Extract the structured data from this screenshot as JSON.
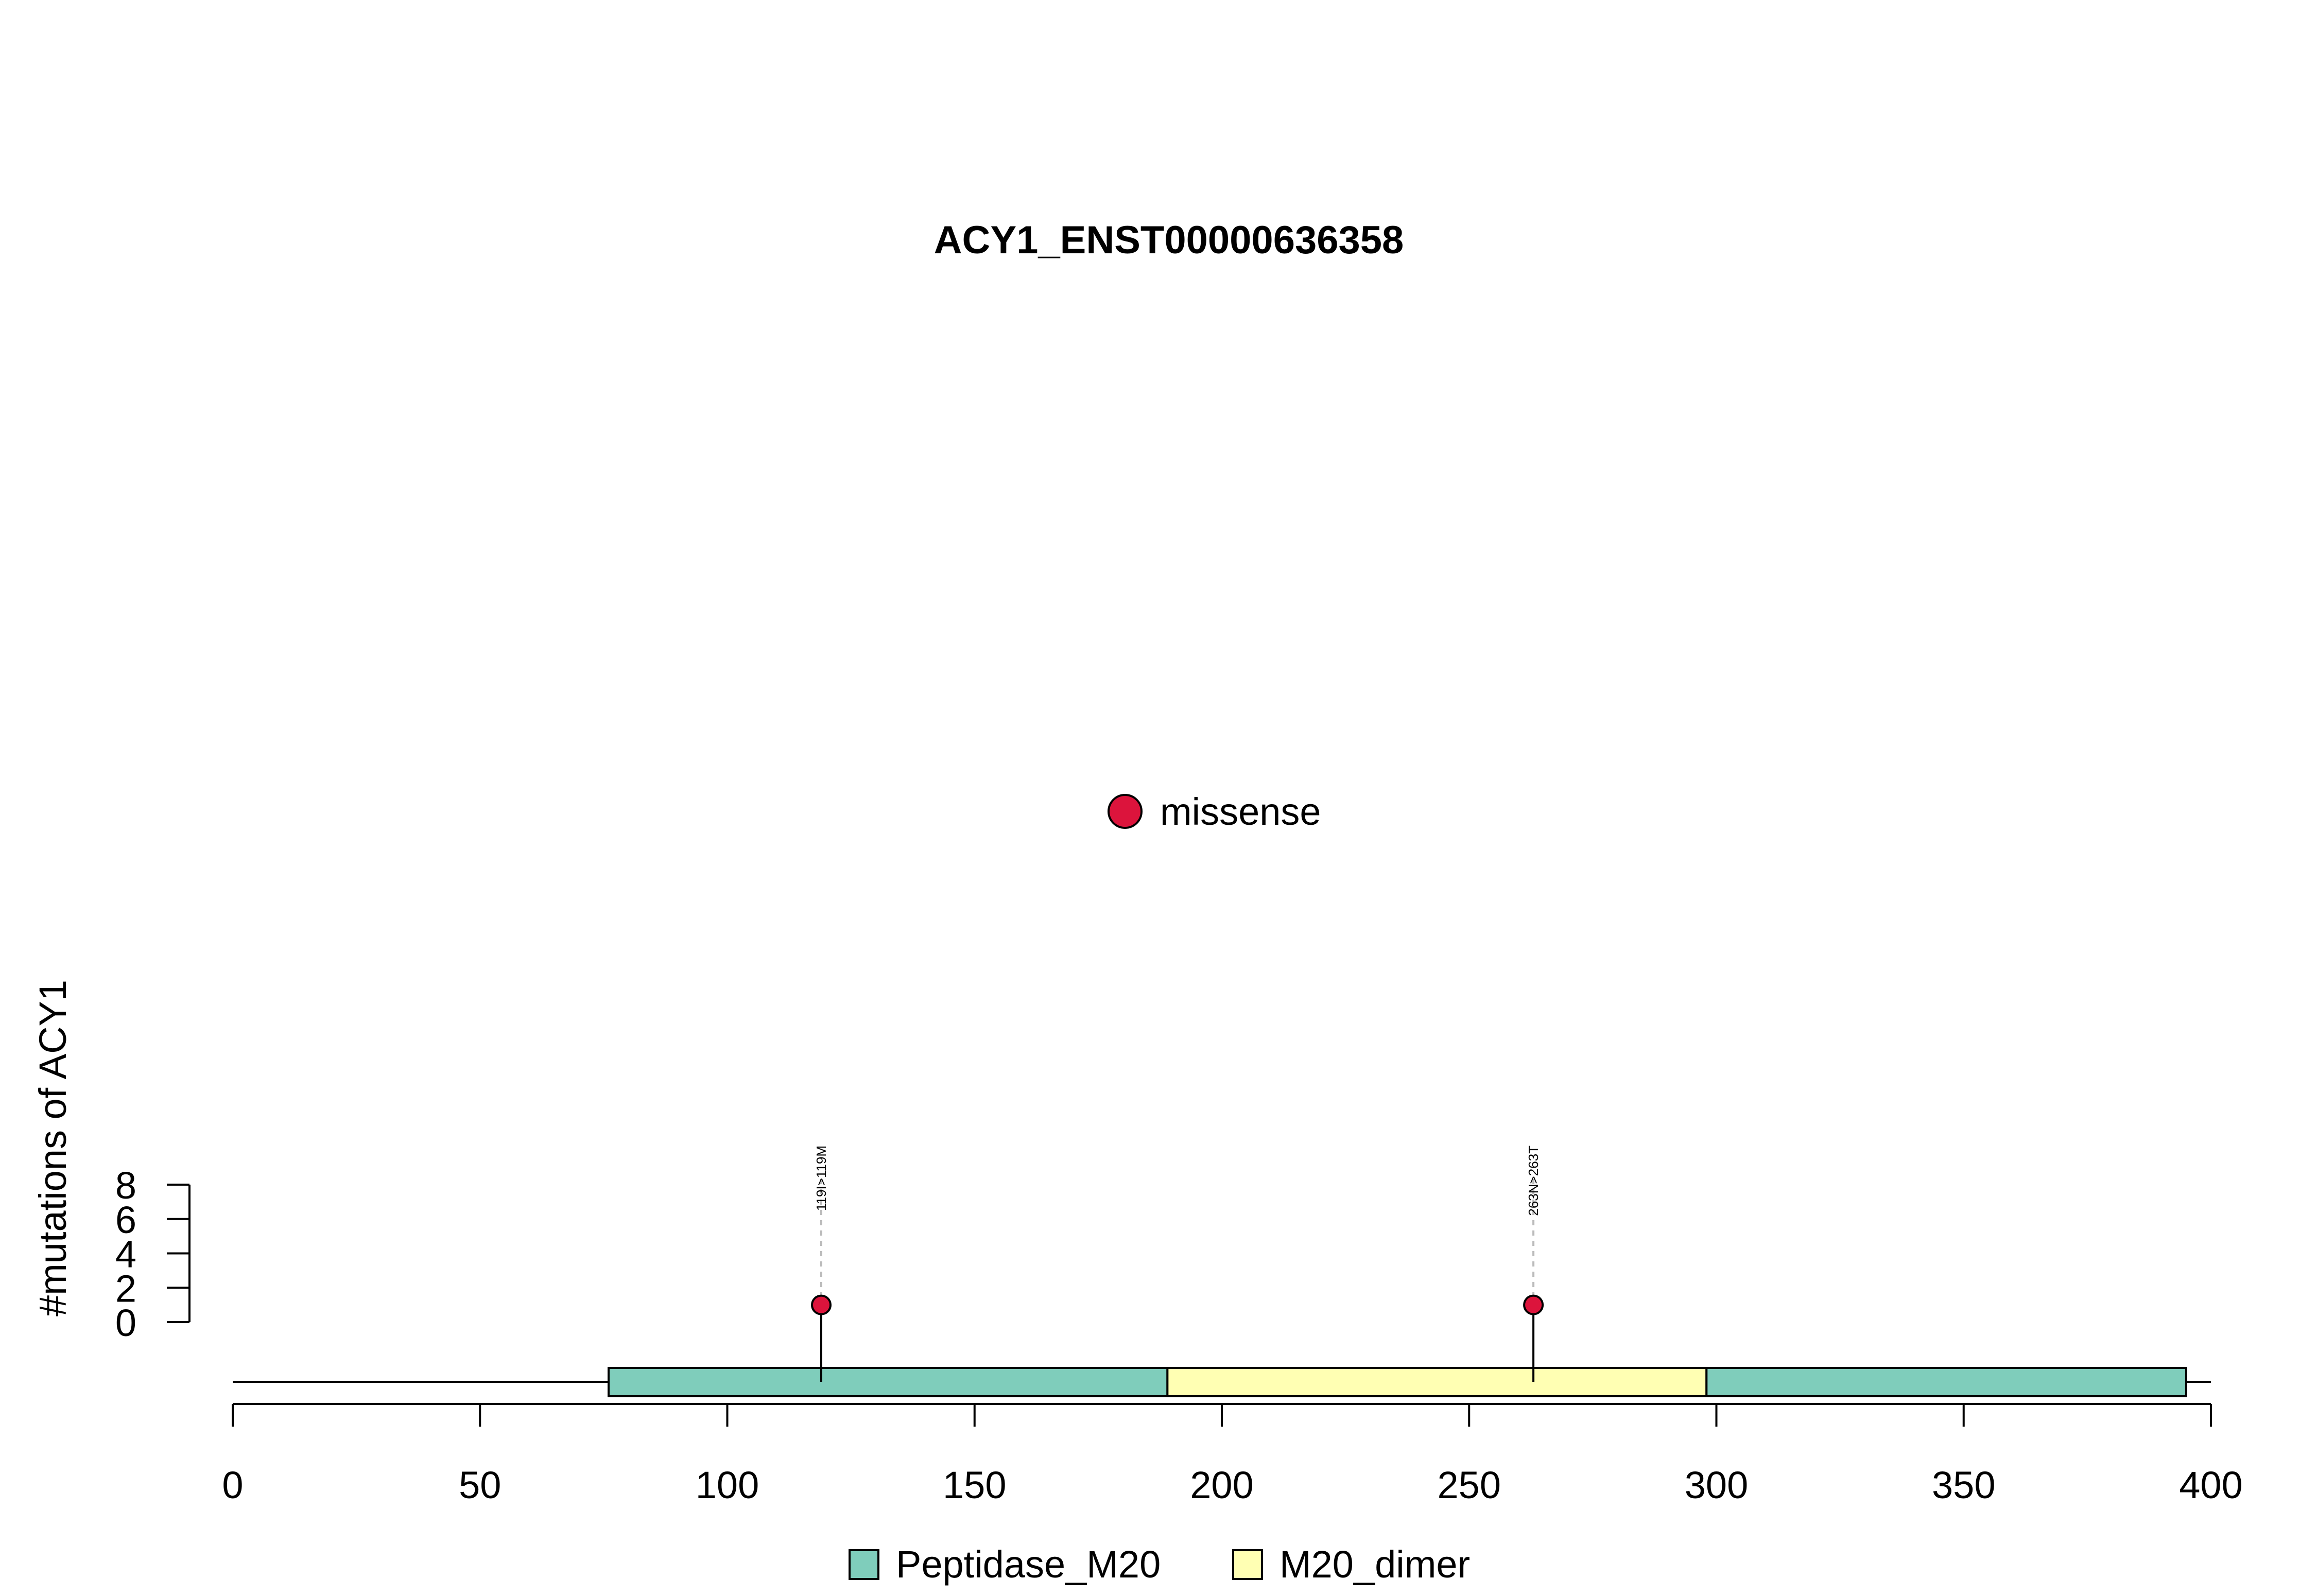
{
  "chart_data": {
    "type": "lollipop",
    "title": "ACY1_ENST00000636358",
    "ylabel": "#mutations of ACY1",
    "xlim": [
      0,
      400
    ],
    "ylim": [
      0,
      8
    ],
    "x_ticks": [
      "0",
      "50",
      "100",
      "150",
      "200",
      "250",
      "300",
      "350",
      "400"
    ],
    "y_ticks": [
      "0",
      "2",
      "4",
      "6",
      "8"
    ],
    "protein_length": 400,
    "domains": [
      {
        "name": "Peptidase_M20",
        "start": 76,
        "end": 189,
        "color": "#7FCDBB"
      },
      {
        "name": "M20_dimer",
        "start": 189,
        "end": 298,
        "color": "#FFFFB3"
      },
      {
        "name": "Peptidase_M20",
        "start": 298,
        "end": 395,
        "color": "#7FCDBB"
      }
    ],
    "mutations": [
      {
        "position": 119,
        "count": 1,
        "label": "119I>119M",
        "type": "missense"
      },
      {
        "position": 263,
        "count": 1,
        "label": "263N>263T",
        "type": "missense"
      }
    ],
    "mutation_legend": [
      {
        "name": "missense",
        "color": "#DC143C"
      }
    ],
    "domain_legend": [
      {
        "name": "Peptidase_M20",
        "color": "#7FCDBB"
      },
      {
        "name": "M20_dimer",
        "color": "#FFFFB3"
      }
    ],
    "grid": false
  }
}
